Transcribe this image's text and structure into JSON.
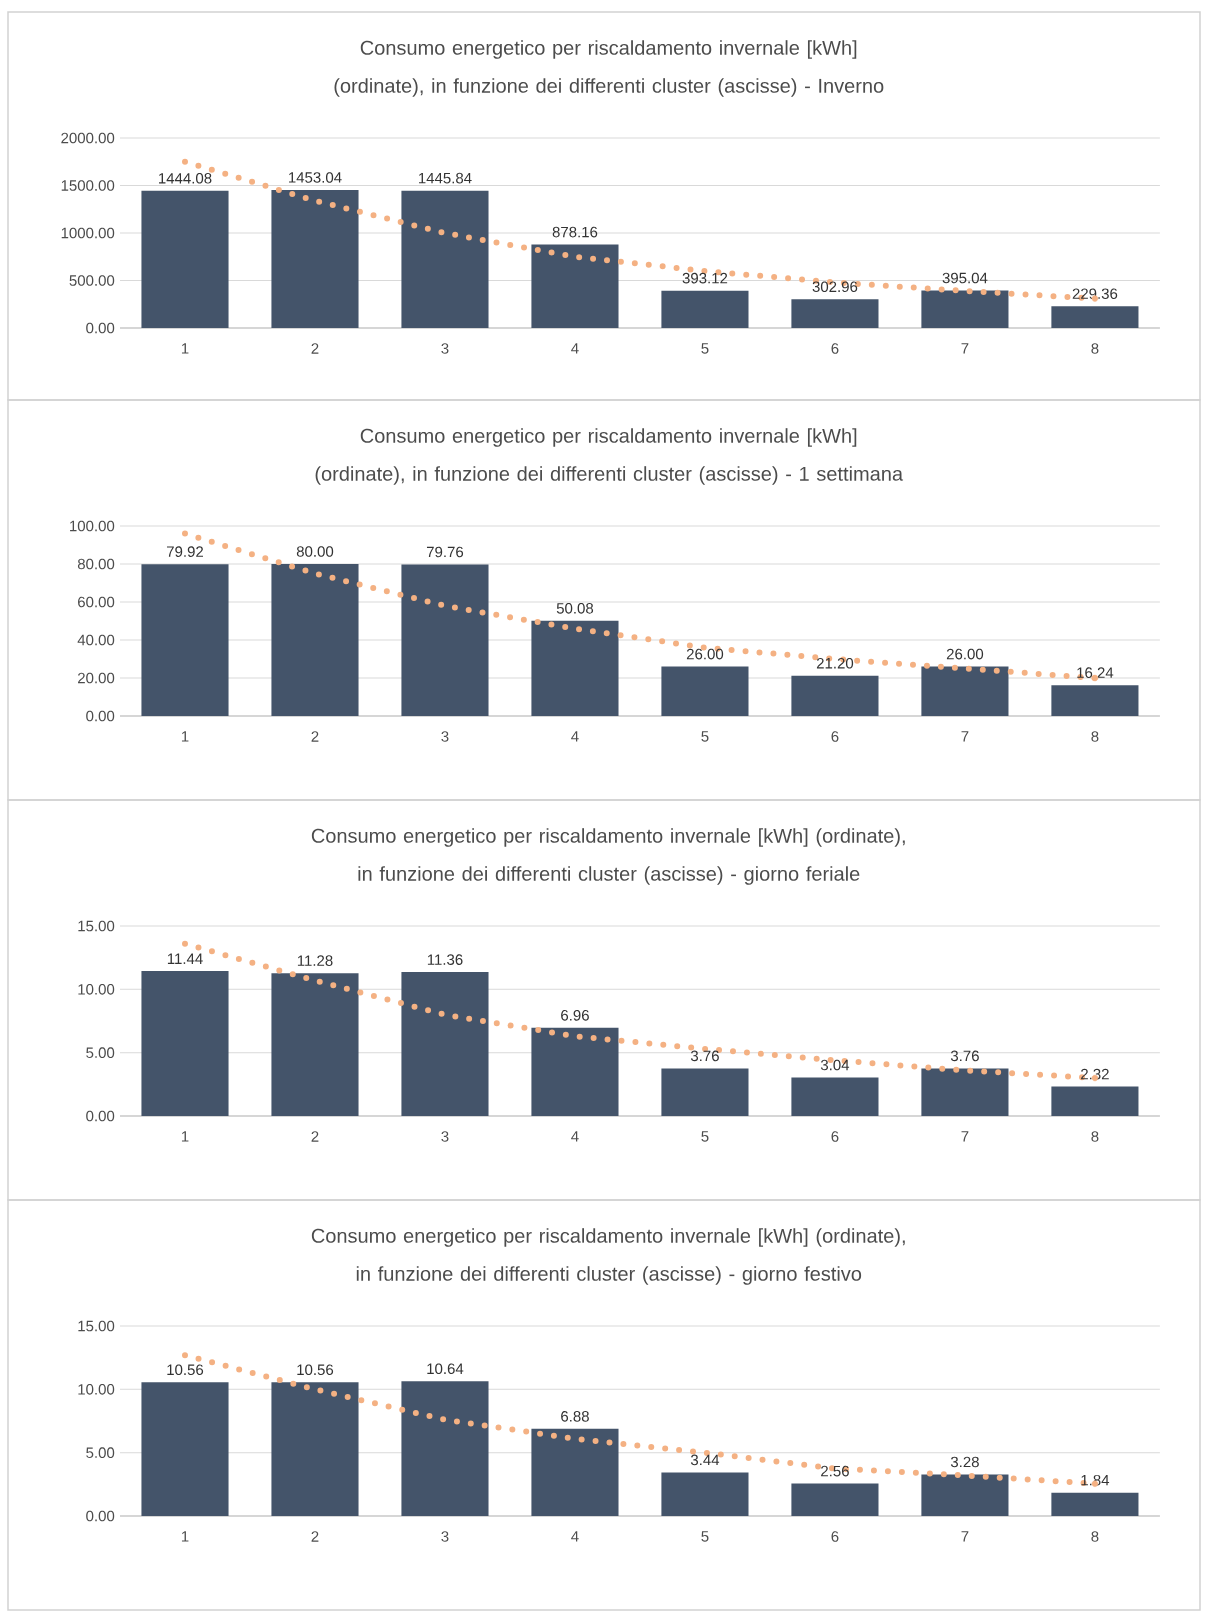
{
  "chart_data": [
    {
      "type": "bar",
      "title": "Consumo energetico per riscaldamento invernale [kWh] (ordinate), in funzione dei differenti cluster (ascisse) - Inverno",
      "categories": [
        "1",
        "2",
        "3",
        "4",
        "5",
        "6",
        "7",
        "8"
      ],
      "ylim": [
        0,
        2000
      ],
      "yticks": [
        {
          "value": 0,
          "label": "0.00"
        },
        {
          "value": 500,
          "label": "500.00"
        },
        {
          "value": 1000,
          "label": "1000.00"
        },
        {
          "value": 1500,
          "label": "1500.00"
        },
        {
          "value": 2000,
          "label": "2000.00"
        }
      ],
      "grid": "y",
      "series": [
        {
          "color": "#44546a",
          "values": [
            1444.08,
            1453.04,
            1445.84,
            878.16,
            393.12,
            302.96,
            395.04,
            229.36
          ],
          "value_labels": [
            "1444.08",
            "1453.04",
            "1445.84",
            "878.16",
            "393.12",
            "302.96",
            "395.04",
            "229.36"
          ]
        },
        {
          "type": "line",
          "color": "#f4b183",
          "line_style": "dotted",
          "marker": "none",
          "values": [
            1750,
            1340,
            1000,
            750,
            600,
            480,
            390,
            310
          ]
        }
      ]
    },
    {
      "type": "bar",
      "title": "Consumo energetico per riscaldamento invernale [kWh] (ordinate), in funzione dei differenti cluster (ascisse) - 1 settimana",
      "categories": [
        "1",
        "2",
        "3",
        "4",
        "5",
        "6",
        "7",
        "8"
      ],
      "ylim": [
        0,
        100
      ],
      "yticks": [
        {
          "value": 0,
          "label": "0.00"
        },
        {
          "value": 20,
          "label": "20.00"
        },
        {
          "value": 40,
          "label": "40.00"
        },
        {
          "value": 60,
          "label": "60.00"
        },
        {
          "value": 80,
          "label": "80.00"
        },
        {
          "value": 100,
          "label": "100.00"
        }
      ],
      "grid": "y",
      "series": [
        {
          "color": "#44546a",
          "values": [
            79.92,
            80.0,
            79.76,
            50.08,
            26.0,
            21.2,
            26.0,
            16.24
          ],
          "value_labels": [
            "79.92",
            "80.00",
            "79.76",
            "50.08",
            "26.00",
            "21.20",
            "26.00",
            "16.24"
          ]
        },
        {
          "type": "line",
          "color": "#f4b183",
          "line_style": "dotted",
          "marker": "none",
          "values": [
            96,
            75,
            58,
            46,
            36,
            30,
            25,
            20
          ]
        }
      ]
    },
    {
      "type": "bar",
      "title": "Consumo energetico per riscaldamento invernale [kWh] (ordinate), in funzione dei differenti cluster (ascisse) - giorno feriale",
      "categories": [
        "1",
        "2",
        "3",
        "4",
        "5",
        "6",
        "7",
        "8"
      ],
      "ylim": [
        0,
        15
      ],
      "yticks": [
        {
          "value": 0,
          "label": "0.00"
        },
        {
          "value": 5,
          "label": "5.00"
        },
        {
          "value": 10,
          "label": "10.00"
        },
        {
          "value": 15,
          "label": "15.00"
        }
      ],
      "grid": "y",
      "series": [
        {
          "color": "#44546a",
          "values": [
            11.44,
            11.28,
            11.36,
            6.96,
            3.76,
            3.04,
            3.76,
            2.32
          ],
          "value_labels": [
            "11.44",
            "11.28",
            "11.36",
            "6.96",
            "3.76",
            "3.04",
            "3.76",
            "2.32"
          ]
        },
        {
          "type": "line",
          "color": "#f4b183",
          "line_style": "dotted",
          "marker": "none",
          "values": [
            13.6,
            10.7,
            8.0,
            6.3,
            5.3,
            4.4,
            3.6,
            3.0
          ]
        }
      ]
    },
    {
      "type": "bar",
      "title": "Consumo energetico per riscaldamento invernale [kWh] (ordinate), in funzione dei differenti cluster (ascisse) - giorno festivo",
      "categories": [
        "1",
        "2",
        "3",
        "4",
        "5",
        "6",
        "7",
        "8"
      ],
      "ylim": [
        0,
        15
      ],
      "yticks": [
        {
          "value": 0,
          "label": "0.00"
        },
        {
          "value": 5,
          "label": "5.00"
        },
        {
          "value": 10,
          "label": "10.00"
        },
        {
          "value": 15,
          "label": "15.00"
        }
      ],
      "grid": "y",
      "series": [
        {
          "color": "#44546a",
          "values": [
            10.56,
            10.56,
            10.64,
            6.88,
            3.44,
            2.56,
            3.28,
            1.84
          ],
          "value_labels": [
            "10.56",
            "10.56",
            "10.64",
            "6.88",
            "3.44",
            "2.56",
            "3.28",
            "1.84"
          ]
        },
        {
          "type": "line",
          "color": "#f4b183",
          "line_style": "dotted",
          "marker": "none",
          "values": [
            12.7,
            10.0,
            7.6,
            6.1,
            5.0,
            3.75,
            3.2,
            2.55
          ]
        }
      ]
    }
  ]
}
